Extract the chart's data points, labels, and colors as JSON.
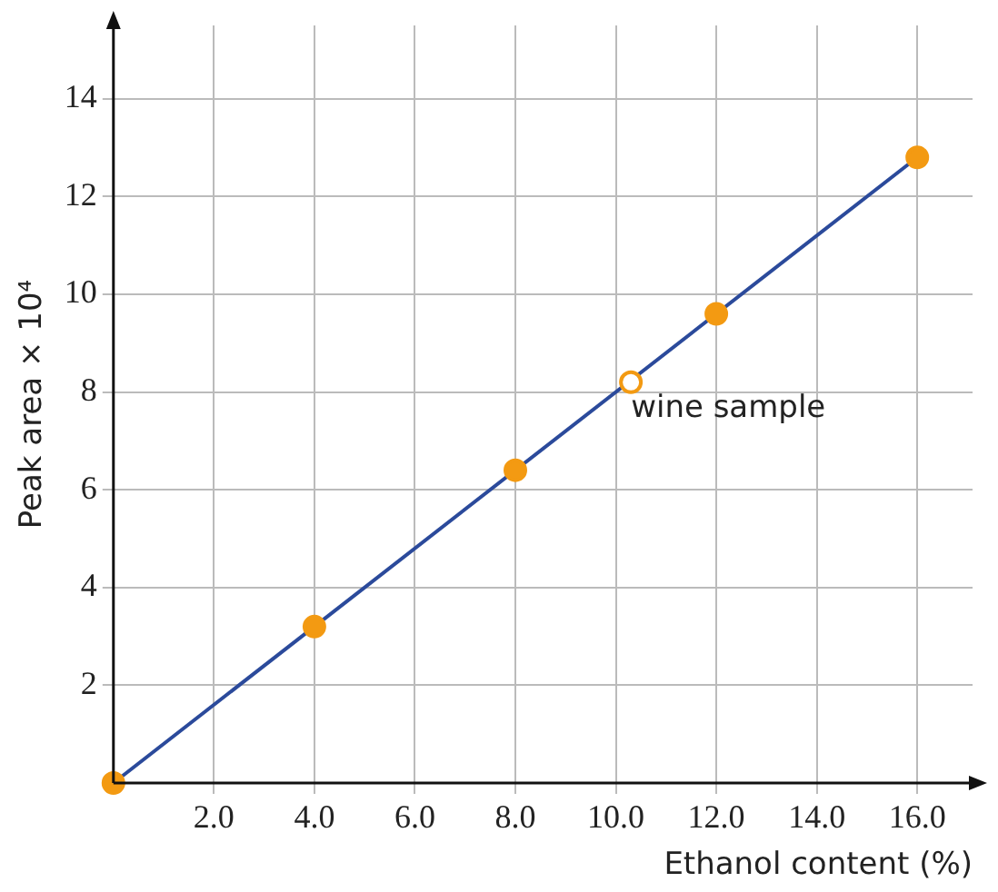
{
  "chart_data": {
    "type": "scatter",
    "xlabel": "Ethanol content (%)",
    "ylabel": "Peak area × 10⁴",
    "xlim": [
      0,
      17.1
    ],
    "ylim": [
      0,
      15.5
    ],
    "xticks": [
      {
        "value": 0,
        "label": null
      },
      {
        "value": 2,
        "label": "2.0"
      },
      {
        "value": 4,
        "label": "4.0"
      },
      {
        "value": 6,
        "label": "6.0"
      },
      {
        "value": 8,
        "label": "8.0"
      },
      {
        "value": 10,
        "label": "10.0"
      },
      {
        "value": 12,
        "label": "12.0"
      },
      {
        "value": 14,
        "label": "14.0"
      },
      {
        "value": 16,
        "label": "16.0"
      }
    ],
    "yticks": [
      {
        "value": 0,
        "label": null
      },
      2,
      4,
      6,
      8,
      10,
      12,
      14
    ],
    "grid": true,
    "legend": false,
    "series": [
      {
        "type": "line",
        "color": "#2b4a9b",
        "x": [
          0,
          16
        ],
        "values": [
          0,
          12.8
        ],
        "marker": "none",
        "line_style": "solid"
      },
      {
        "type": "scatter",
        "color": "#f39a12",
        "x": [
          0,
          4,
          8,
          12,
          16
        ],
        "values": [
          0,
          3.2,
          6.4,
          9.6,
          12.8
        ],
        "marker": "circle"
      },
      {
        "type": "scatter",
        "color": "#f39a12",
        "x": [
          10.3
        ],
        "values": [
          8.2
        ],
        "marker": "circle"
      }
    ],
    "annotations": [
      {
        "text": "wine sample",
        "x": 10.3,
        "y": 8.2
      }
    ]
  }
}
